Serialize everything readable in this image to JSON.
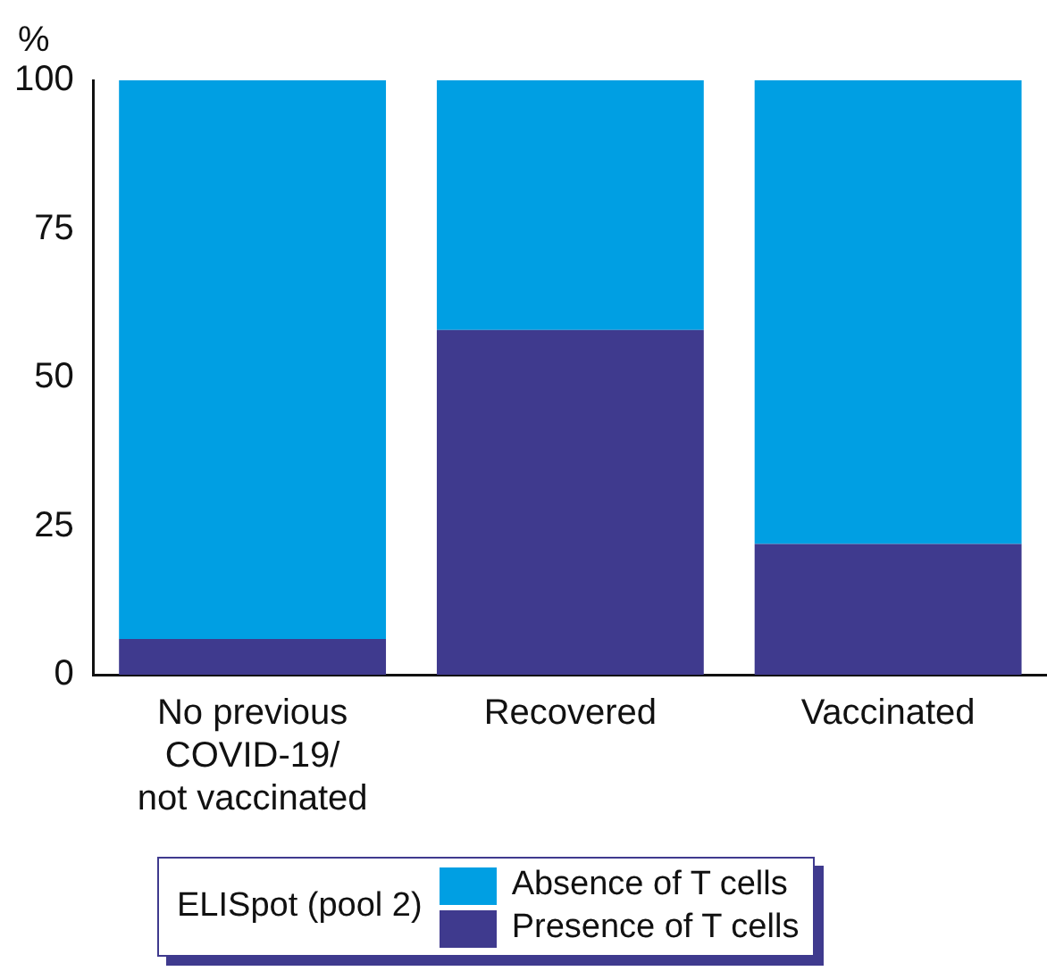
{
  "chart_data": {
    "type": "bar",
    "stacked": true,
    "ylabel": "%",
    "legend_title": "ELISpot (pool 2)",
    "legend": "bottom",
    "categories": [
      "No previous COVID-19/ not vaccinated",
      "Recovered",
      "Vaccinated"
    ],
    "series": [
      {
        "name": "Presence of T cells",
        "color": "#3f3a8e",
        "values": [
          6,
          58,
          22
        ]
      },
      {
        "name": "Absence of T cells",
        "color": "#009fe3",
        "values": [
          94,
          42,
          78
        ]
      }
    ],
    "ylim": [
      0,
      100
    ],
    "yticks": [
      0,
      25,
      50,
      75,
      100
    ],
    "grid": false
  }
}
